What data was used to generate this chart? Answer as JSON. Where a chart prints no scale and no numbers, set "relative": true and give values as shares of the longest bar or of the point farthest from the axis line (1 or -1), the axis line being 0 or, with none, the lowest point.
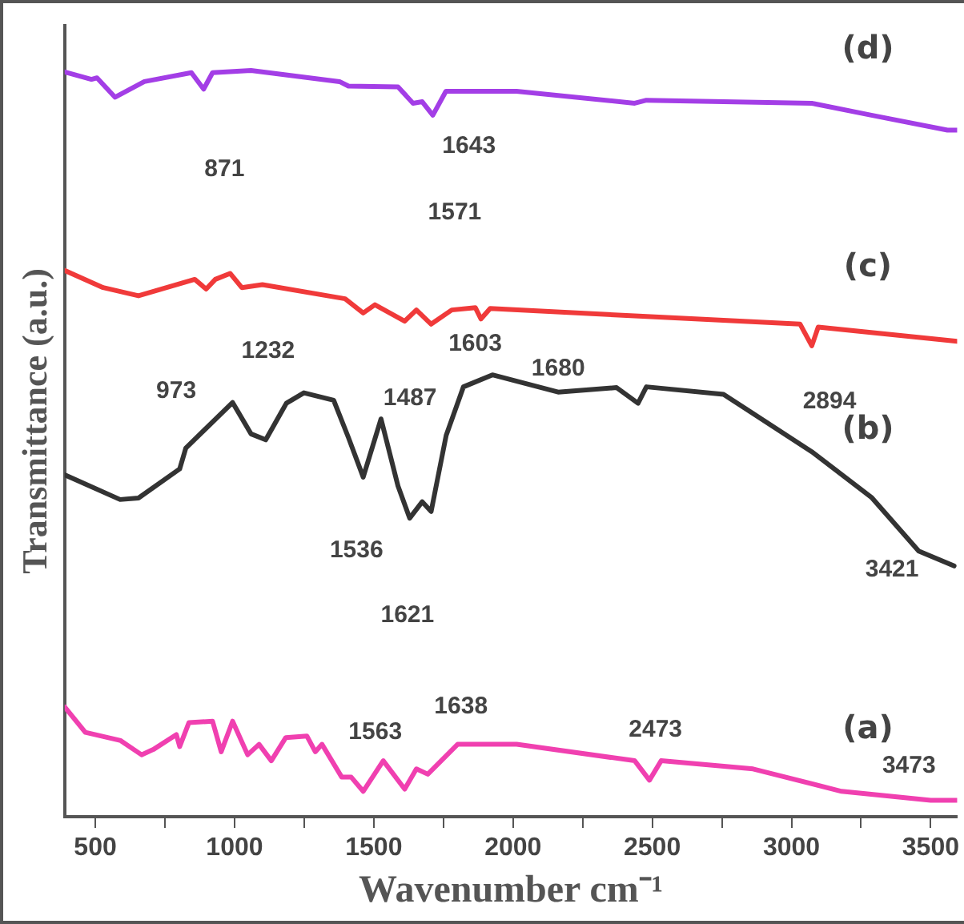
{
  "chart_data": {
    "type": "line",
    "relative": true,
    "xlabel": "Wavenumber cm⁻¹",
    "ylabel": "Transmittance (a.u.)",
    "xlim": [
      390,
      3595
    ],
    "xticks": [
      500,
      {
        "value": 750,
        "label": null
      },
      1000,
      {
        "value": 1250,
        "label": null
      },
      1500,
      {
        "value": 1750,
        "label": null
      },
      2000,
      {
        "value": 2250,
        "label": null
      },
      2500,
      {
        "value": 2750,
        "label": null
      },
      3000,
      {
        "value": 3250,
        "label": null
      },
      3500
    ],
    "grid": false,
    "legend": false,
    "marker": "none",
    "line_style": "solid",
    "series": [
      {
        "name": "(d)",
        "color": "#a33ee6",
        "x": [
          390,
          486,
          506,
          571,
          676,
          845,
          889,
          921,
          1059,
          1377,
          1409,
          1587,
          1641,
          1674,
          1712,
          1759,
          2013,
          2437,
          2479,
          3073,
          3287,
          3560,
          3595
        ],
        "values": [
          0.998,
          0.988,
          0.99,
          0.964,
          0.985,
          0.997,
          0.975,
          0.997,
          1.0,
          0.985,
          0.979,
          0.978,
          0.956,
          0.958,
          0.94,
          0.972,
          0.972,
          0.956,
          0.96,
          0.956,
          0.94,
          0.92,
          0.92
        ]
      },
      {
        "name": "(c)",
        "color": "#f03a3a",
        "x": [
          390,
          528,
          655,
          857,
          898,
          931,
          984,
          1026,
          1100,
          1397,
          1462,
          1504,
          1611,
          1653,
          1706,
          1780,
          1865,
          1885,
          1918,
          2437,
          3031,
          3073,
          3096,
          3595
        ],
        "values": [
          0.732,
          0.709,
          0.698,
          0.72,
          0.707,
          0.72,
          0.728,
          0.709,
          0.713,
          0.694,
          0.675,
          0.686,
          0.664,
          0.679,
          0.66,
          0.679,
          0.682,
          0.667,
          0.681,
          0.671,
          0.66,
          0.631,
          0.656,
          0.637
        ]
      },
      {
        "name": "(b)",
        "color": "#333333",
        "x": [
          390,
          589,
          655,
          803,
          825,
          993,
          1059,
          1112,
          1186,
          1249,
          1356,
          1409,
          1462,
          1526,
          1587,
          1629,
          1674,
          1706,
          1760,
          1822,
          1926,
          2162,
          2372,
          2449,
          2479,
          2756,
          3073,
          3287,
          3457,
          3584
        ],
        "values": [
          0.458,
          0.425,
          0.427,
          0.466,
          0.494,
          0.555,
          0.513,
          0.505,
          0.554,
          0.568,
          0.558,
          0.508,
          0.455,
          0.533,
          0.443,
          0.4,
          0.422,
          0.409,
          0.511,
          0.576,
          0.592,
          0.569,
          0.575,
          0.554,
          0.576,
          0.566,
          0.489,
          0.428,
          0.356,
          0.336
        ]
      },
      {
        "name": "(a)",
        "color": "#f040b0",
        "x": [
          390,
          464,
          591,
          666,
          708,
          791,
          803,
          836,
          921,
          952,
          993,
          1047,
          1088,
          1132,
          1184,
          1260,
          1290,
          1314,
          1385,
          1419,
          1462,
          1534,
          1611,
          1653,
          1694,
          1801,
          2013,
          2437,
          2490,
          2532,
          2862,
          3180,
          3500,
          3595
        ],
        "values": [
          0.147,
          0.113,
          0.102,
          0.083,
          0.09,
          0.11,
          0.094,
          0.126,
          0.128,
          0.087,
          0.128,
          0.083,
          0.097,
          0.075,
          0.106,
          0.108,
          0.087,
          0.097,
          0.053,
          0.053,
          0.034,
          0.075,
          0.037,
          0.064,
          0.057,
          0.097,
          0.097,
          0.075,
          0.049,
          0.075,
          0.064,
          0.034,
          0.022,
          0.022
        ]
      }
    ],
    "annotations": [
      "871",
      "1643",
      "1571",
      "973",
      "1232",
      "1487",
      "1603",
      "1680",
      "2894",
      "1536",
      "1621",
      "3421",
      "1563",
      "1638",
      "2473",
      "3473"
    ]
  }
}
